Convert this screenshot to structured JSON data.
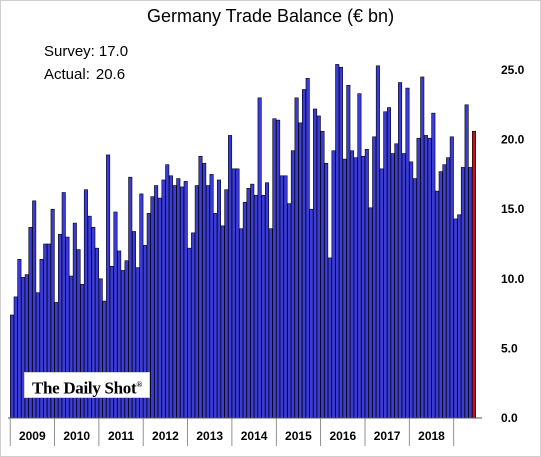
{
  "chart_data": {
    "type": "bar",
    "title": "Germany Trade Balance (€ bn)",
    "annotations": {
      "survey_label": "Survey:",
      "survey_value": "17.0",
      "actual_label": "Actual:",
      "actual_value": "20.6"
    },
    "watermark": "The Daily Shot",
    "ylim": [
      0,
      27
    ],
    "y_ticks": [
      "0.0",
      "5.0",
      "10.0",
      "15.0",
      "20.0",
      "25.0"
    ],
    "y_tick_values": [
      0,
      5,
      10,
      15,
      20,
      25
    ],
    "y_axis_side": "right",
    "x_tick_labels": [
      "2009",
      "2010",
      "2011",
      "2012",
      "2013",
      "2014",
      "2015",
      "2016",
      "2017",
      "2018"
    ],
    "grid": false,
    "bar_color": "#3b3bd9",
    "highlight_color": "#c0141c",
    "highlight_index": "last",
    "values": [
      7.4,
      8.7,
      11.4,
      10.1,
      10.3,
      13.7,
      15.6,
      9.0,
      11.4,
      12.5,
      12.5,
      15.0,
      8.3,
      13.2,
      16.2,
      13.0,
      10.2,
      14.0,
      12.1,
      9.6,
      16.4,
      14.5,
      13.7,
      12.2,
      10.0,
      8.4,
      18.9,
      10.9,
      14.8,
      12.0,
      10.6,
      11.3,
      17.3,
      13.4,
      10.8,
      16.1,
      12.4,
      14.7,
      15.9,
      16.7,
      15.8,
      17.1,
      18.2,
      17.4,
      16.7,
      17.2,
      16.6,
      17.0,
      12.2,
      13.3,
      16.7,
      18.8,
      18.3,
      16.7,
      17.5,
      14.7,
      17.1,
      13.8,
      16.4,
      20.3,
      17.9,
      17.9,
      13.6,
      15.5,
      16.5,
      16.8,
      16.0,
      23.0,
      16.0,
      16.9,
      13.6,
      21.5,
      21.4,
      17.4,
      17.4,
      15.4,
      19.2,
      23.0,
      21.2,
      23.6,
      24.4,
      15.0,
      22.2,
      21.7,
      20.6,
      18.3,
      11.5,
      19.2,
      25.4,
      25.2,
      18.6,
      23.9,
      19.2,
      18.7,
      23.3,
      18.8,
      19.3,
      15.1,
      20.2,
      25.3,
      17.9,
      22.0,
      22.3,
      19.0,
      19.7,
      24.1,
      19.0,
      23.7,
      18.4,
      17.2,
      20.1,
      24.5,
      20.3,
      20.1,
      21.9,
      16.3,
      17.7,
      18.2,
      18.7,
      20.2,
      14.3,
      14.6,
      18.0,
      22.5,
      18.0,
      20.6
    ]
  }
}
